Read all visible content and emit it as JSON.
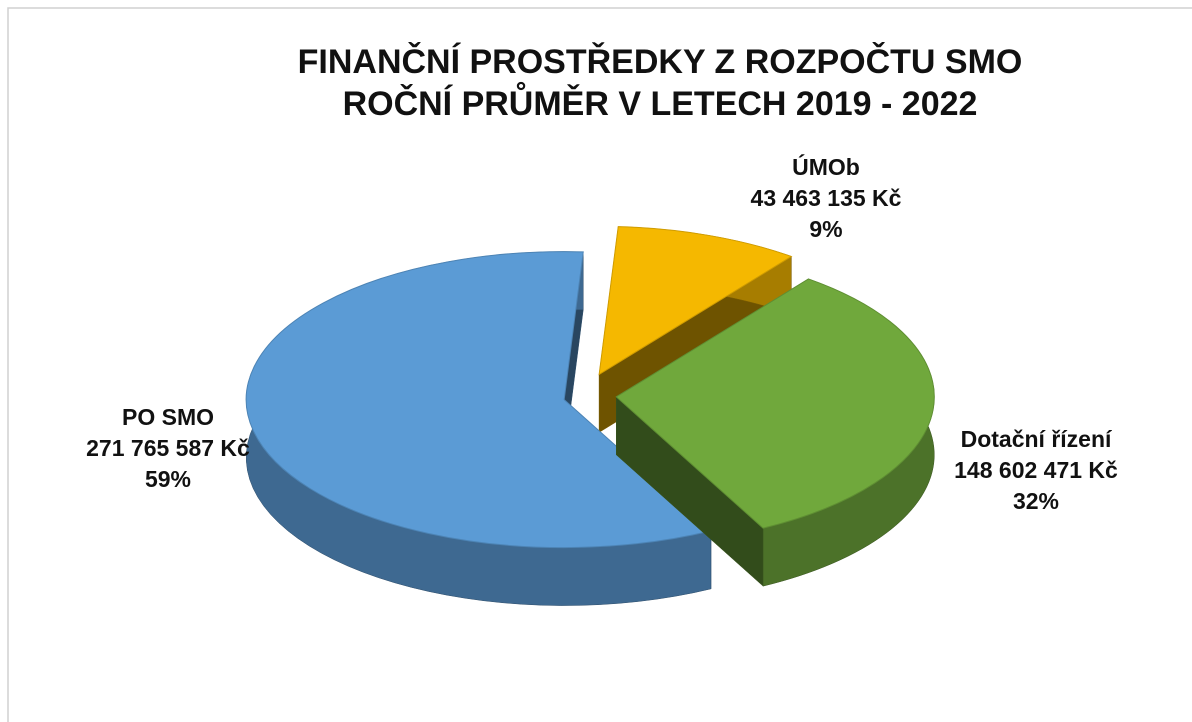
{
  "chart_data": {
    "type": "pie",
    "title": "FINANČNÍ PROSTŘEDKY Z ROZPOČTU SMO",
    "subtitle": "ROČNÍ PRŮMĚR V LETECH 2019 - 2022",
    "categories": [
      "ÚMOb",
      "Dotační řízení",
      "PO SMO"
    ],
    "values": [
      43463135,
      148602471,
      271765587
    ],
    "value_labels": [
      "43 463 135 Kč",
      "148 602 471 Kč",
      "271 765 587 Kč"
    ],
    "percent_labels": [
      "9%",
      "32%",
      "59%"
    ],
    "colors": [
      "#f5b800",
      "#70a83c",
      "#5b9bd5"
    ]
  }
}
